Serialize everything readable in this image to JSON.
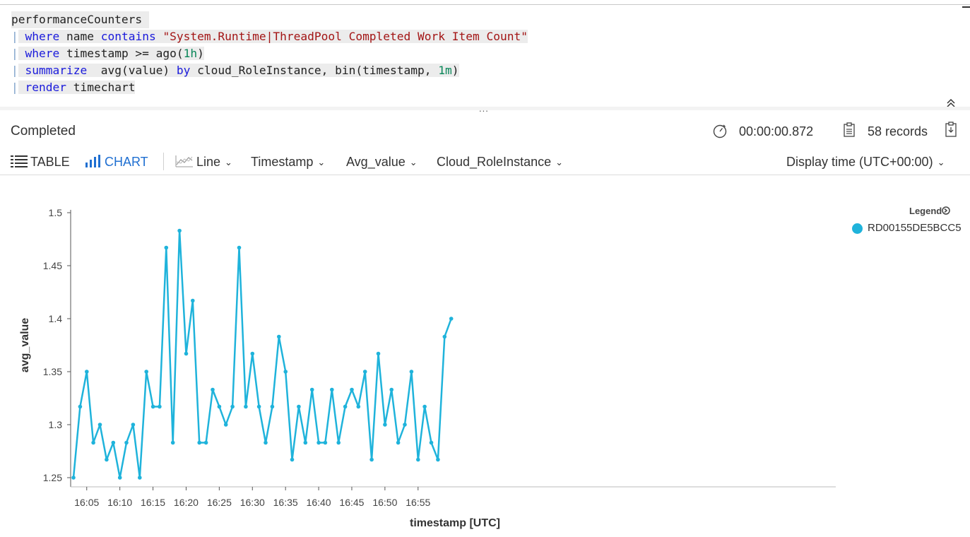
{
  "query": {
    "line1": "performanceCounters ",
    "line2_kw": "where",
    "line2_mid": " name ",
    "line2_kw2": "contains",
    "line2_str": "\"System.Runtime|ThreadPool Completed Work Item Count\"",
    "line3_kw": "where",
    "line3_mid": " timestamp >= ago(",
    "line3_num": "1h",
    "line3_end": ")",
    "line4_kw": "summarize",
    "line4_mid": "  avg(value) ",
    "line4_kw2": "by",
    "line4_mid2": " cloud_RoleInstance, bin(timestamp, ",
    "line4_num": "1m",
    "line4_end": ")",
    "line5_kw": "render",
    "line5_mid": " timechart",
    "pipe": "|",
    "splitter_dots": "...",
    "collapse_icon": "double-chevron-up-icon"
  },
  "status": {
    "text": "Completed",
    "duration": "00:00:00.872",
    "records": "58 records"
  },
  "toolbar": {
    "table_label": "TABLE",
    "chart_label": "CHART",
    "line_label": "Line",
    "x_label": "Timestamp",
    "y_label": "Avg_value",
    "split_label": "Cloud_RoleInstance",
    "display_time_label": "Display time (UTC+00:00)"
  },
  "legend": {
    "title": "Legend",
    "items": [
      "RD00155DE5BCC5"
    ]
  },
  "colors": {
    "series": "#1fb3db",
    "accent": "#1f6fd1",
    "axis": "#555555"
  },
  "chart_data": {
    "type": "line",
    "xlabel": "timestamp [UTC]",
    "ylabel": "avg_value",
    "ylim": [
      1.25,
      1.5
    ],
    "yticks": [
      "1.25",
      "1.3",
      "1.35",
      "1.4",
      "1.45",
      "1.5"
    ],
    "xticks": [
      "16:05",
      "16:10",
      "16:15",
      "16:20",
      "16:25",
      "16:30",
      "16:35",
      "16:40",
      "16:45",
      "16:50",
      "16:55"
    ],
    "x_start": "16:03",
    "x_step_minutes": 1,
    "legend_position": "top-right",
    "series": [
      {
        "name": "RD00155DE5BCC5",
        "values": [
          1.25,
          1.317,
          1.35,
          1.283,
          1.3,
          1.267,
          1.283,
          1.25,
          1.283,
          1.3,
          1.25,
          1.35,
          1.317,
          1.317,
          1.467,
          1.283,
          1.483,
          1.367,
          1.417,
          1.283,
          1.283,
          1.333,
          1.317,
          1.3,
          1.317,
          1.467,
          1.317,
          1.367,
          1.317,
          1.283,
          1.317,
          1.383,
          1.35,
          1.267,
          1.317,
          1.283,
          1.333,
          1.283,
          1.283,
          1.333,
          1.283,
          1.317,
          1.333,
          1.317,
          1.35,
          1.267,
          1.367,
          1.3,
          1.333,
          1.283,
          1.3,
          1.35,
          1.267,
          1.317,
          1.283,
          1.267,
          1.383,
          1.4
        ]
      }
    ]
  }
}
